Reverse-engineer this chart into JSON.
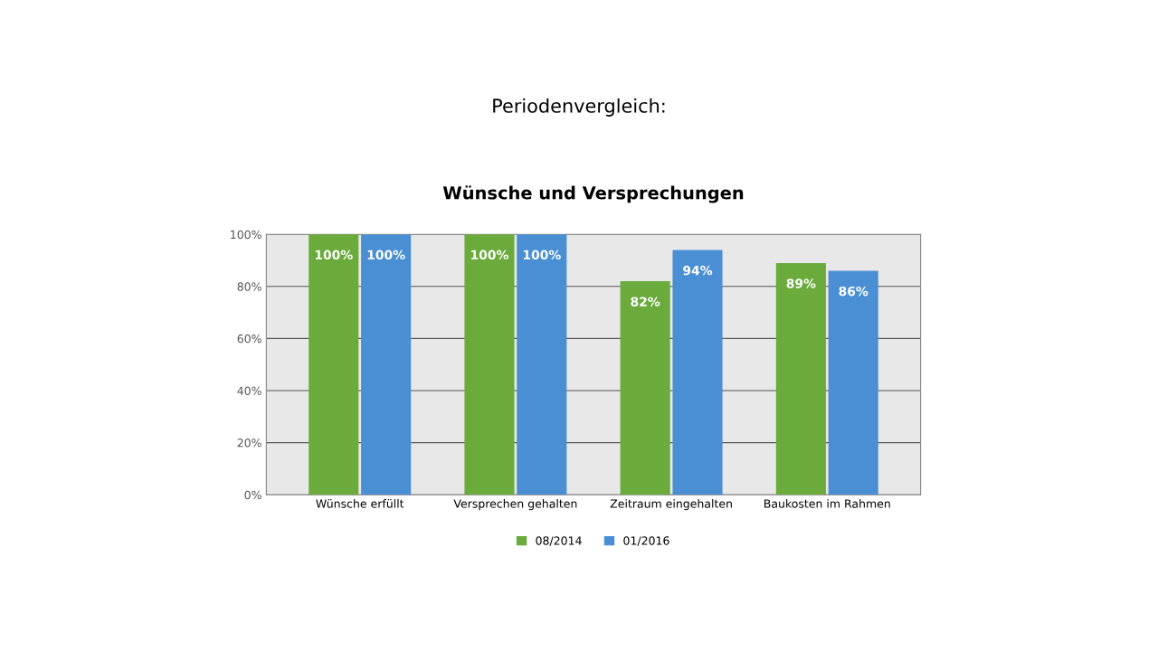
{
  "chart_data": {
    "type": "bar",
    "title": "Periodenvergleich:",
    "subtitle": "Wünsche und Versprechungen",
    "categories": [
      "Wünsche erfüllt",
      "Versprechen gehalten",
      "Zeitraum eingehalten",
      "Baukosten im Rahmen"
    ],
    "series": [
      {
        "name": "08/2014",
        "color": "#6aab3c",
        "values": [
          100,
          100,
          82,
          89
        ],
        "value_labels": [
          "100%",
          "100%",
          "82%",
          "89%"
        ]
      },
      {
        "name": "01/2016",
        "color": "#4a8fd4",
        "values": [
          100,
          100,
          94,
          86
        ],
        "value_labels": [
          "100%",
          "100%",
          "94%",
          "86%"
        ]
      }
    ],
    "ylim": [
      0,
      100
    ],
    "yticks": [
      {
        "value": 0,
        "label": "0%"
      },
      {
        "value": 20,
        "label": "20%"
      },
      {
        "value": 40,
        "label": "40%"
      },
      {
        "value": 60,
        "label": "60%"
      },
      {
        "value": 80,
        "label": "80%"
      },
      {
        "value": 100,
        "label": "100%"
      }
    ],
    "grid": "y",
    "legend": "bottom"
  }
}
